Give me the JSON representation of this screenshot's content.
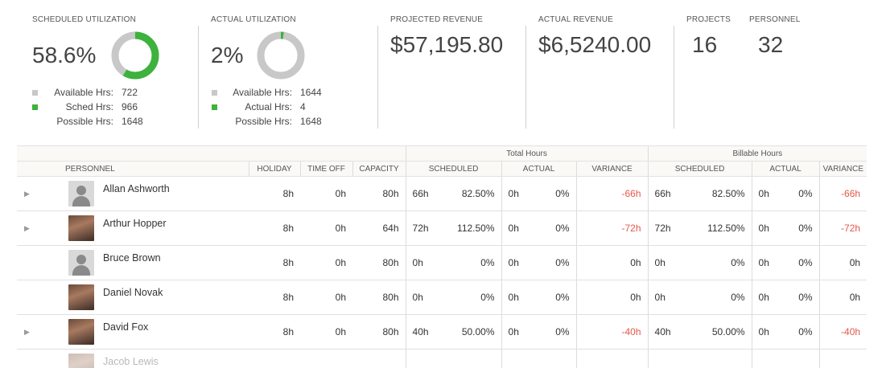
{
  "summary": {
    "scheduled_utilization": {
      "label": "SCHEDULED UTILIZATION",
      "value": "58.6%",
      "fraction": 0.586,
      "legend": [
        {
          "label": "Available Hrs:",
          "value": "722",
          "color": "#c8c8c8"
        },
        {
          "label": "Sched Hrs:",
          "value": "966",
          "color": "#3db23d"
        },
        {
          "label": "Possible Hrs:",
          "value": "1648",
          "color": ""
        }
      ]
    },
    "actual_utilization": {
      "label": "ACTUAL UTILIZATION",
      "value": "2%",
      "fraction": 0.02,
      "legend": [
        {
          "label": "Available Hrs:",
          "value": "1644",
          "color": "#c8c8c8"
        },
        {
          "label": "Actual Hrs:",
          "value": "4",
          "color": "#3db23d"
        },
        {
          "label": "Possible Hrs:",
          "value": "1648",
          "color": ""
        }
      ]
    },
    "projected_revenue": {
      "label": "PROJECTED REVENUE",
      "value": "$57,195.80"
    },
    "actual_revenue": {
      "label": "ACTUAL REVENUE",
      "value": "$6,5240.00"
    },
    "projects": {
      "label": "PROJECTS",
      "value": "16"
    },
    "personnel": {
      "label": "PERSONNEL",
      "value": "32"
    }
  },
  "colors": {
    "donut_track": "#c8c8c8",
    "donut_fill": "#3db23d",
    "negative": "#e4574a"
  },
  "table": {
    "group_headers": {
      "total": "Total Hours",
      "billable": "Billable Hours"
    },
    "columns": {
      "personnel": "PERSONNEL",
      "holiday": "HOLIDAY",
      "time_off": "TIME OFF",
      "capacity": "CAPACITY",
      "scheduled": "SCHEDULED",
      "actual": "ACTUAL",
      "variance": "VARIANCE",
      "b_scheduled": "SCHEDULED",
      "b_actual": "ACTUAL",
      "b_variance": "VARIANCE"
    },
    "rows": [
      {
        "name": "Allan Ashworth",
        "avatar": "generic-avatar-icon",
        "expandable": true,
        "holiday": "8h",
        "time_off": "0h",
        "capacity": "80h",
        "sched_h": "66h",
        "sched_pct": "82.50%",
        "act_h": "0h",
        "act_pct": "0%",
        "variance": "-66h",
        "b_sched_h": "66h",
        "b_sched_pct": "82.50%",
        "b_act_h": "0h",
        "b_act_pct": "0%",
        "b_variance": "-66h"
      },
      {
        "name": "Arthur Hopper",
        "avatar": "photo",
        "expandable": true,
        "holiday": "8h",
        "time_off": "0h",
        "capacity": "64h",
        "sched_h": "72h",
        "sched_pct": "112.50%",
        "act_h": "0h",
        "act_pct": "0%",
        "variance": "-72h",
        "b_sched_h": "72h",
        "b_sched_pct": "112.50%",
        "b_act_h": "0h",
        "b_act_pct": "0%",
        "b_variance": "-72h"
      },
      {
        "name": "Bruce Brown",
        "avatar": "generic-avatar-icon",
        "expandable": false,
        "holiday": "8h",
        "time_off": "0h",
        "capacity": "80h",
        "sched_h": "0h",
        "sched_pct": "0%",
        "act_h": "0h",
        "act_pct": "0%",
        "variance": "0h",
        "b_sched_h": "0h",
        "b_sched_pct": "0%",
        "b_act_h": "0h",
        "b_act_pct": "0%",
        "b_variance": "0h"
      },
      {
        "name": "Daniel Novak",
        "avatar": "photo",
        "expandable": false,
        "holiday": "8h",
        "time_off": "0h",
        "capacity": "80h",
        "sched_h": "0h",
        "sched_pct": "0%",
        "act_h": "0h",
        "act_pct": "0%",
        "variance": "0h",
        "b_sched_h": "0h",
        "b_sched_pct": "0%",
        "b_act_h": "0h",
        "b_act_pct": "0%",
        "b_variance": "0h"
      },
      {
        "name": "David Fox",
        "avatar": "photo",
        "expandable": true,
        "holiday": "8h",
        "time_off": "0h",
        "capacity": "80h",
        "sched_h": "40h",
        "sched_pct": "50.00%",
        "act_h": "0h",
        "act_pct": "0%",
        "variance": "-40h",
        "b_sched_h": "40h",
        "b_sched_pct": "50.00%",
        "b_act_h": "0h",
        "b_act_pct": "0%",
        "b_variance": "-40h"
      },
      {
        "name": "Jacob Lewis",
        "avatar": "photo",
        "expandable": false,
        "holiday": "",
        "time_off": "",
        "capacity": "",
        "sched_h": "",
        "sched_pct": "",
        "act_h": "",
        "act_pct": "",
        "variance": "",
        "b_sched_h": "",
        "b_sched_pct": "",
        "b_act_h": "",
        "b_act_pct": "",
        "b_variance": ""
      }
    ]
  }
}
